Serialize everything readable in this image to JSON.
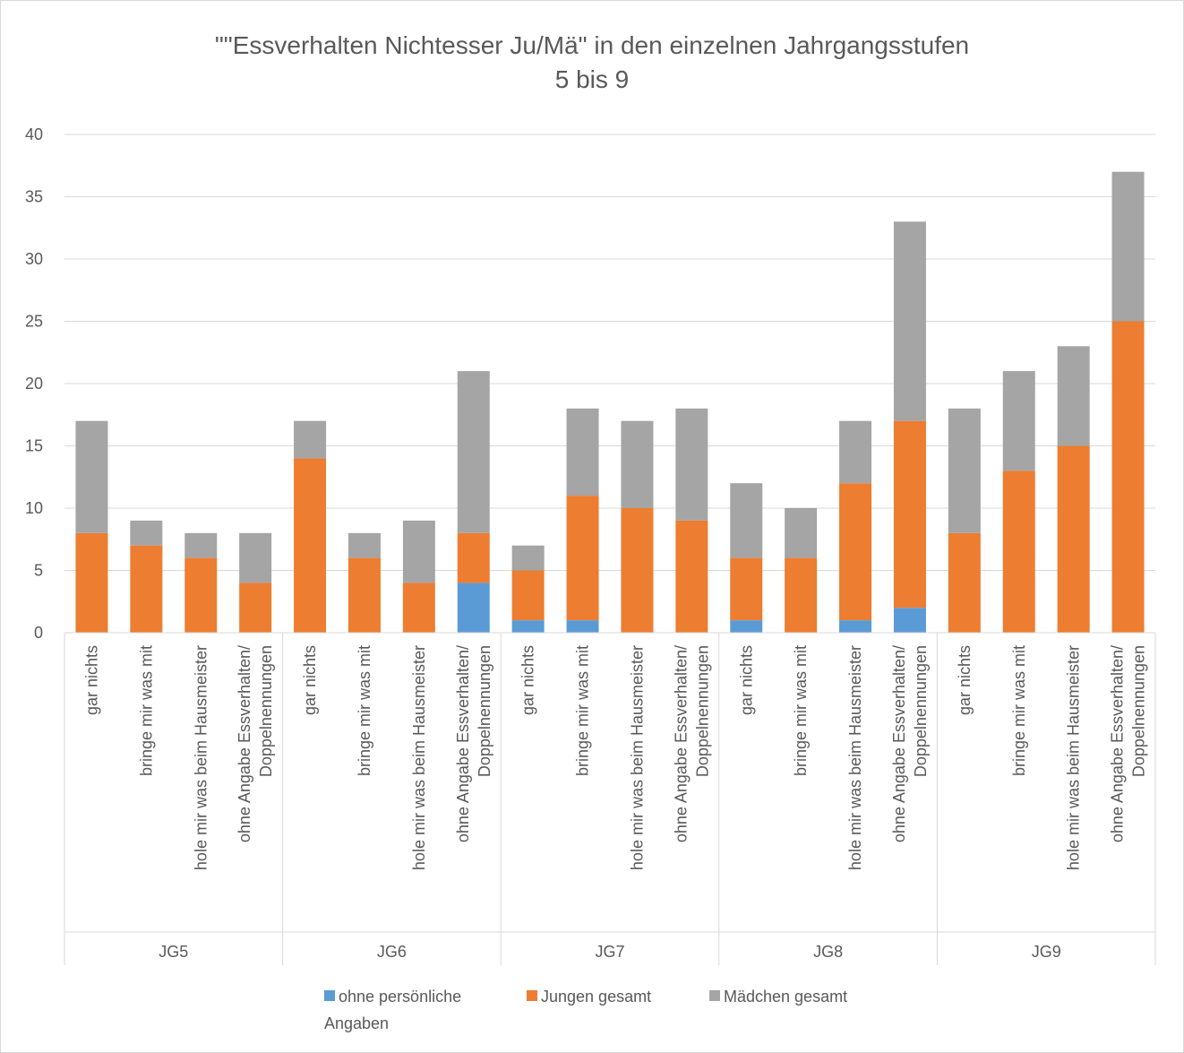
{
  "chart_data": {
    "type": "stacked_bar",
    "title": "\"\"Essverhalten Nichtesser Ju/Mä\" in den einzelnen Jahrgangsstufen\n5 bis 9",
    "groups": [
      "JG5",
      "JG6",
      "JG7",
      "JG8",
      "JG9"
    ],
    "categories": [
      "gar nichts",
      "bringe mir was mit",
      "hole mir was beim Hausmeister",
      "ohne Angabe Essverhalten/\nDoppelnennungen",
      "gar nichts",
      "bringe mir was mit",
      "hole mir was beim Hausmeister",
      "ohne Angabe Essverhalten/\nDoppelnennungen",
      "gar nichts",
      "bringe mir was mit",
      "hole mir was beim Hausmeister",
      "ohne Angabe Essverhalten/\nDoppelnennungen",
      "gar nichts",
      "bringe mir was mit",
      "hole mir was beim Hausmeister",
      "ohne Angabe Essverhalten/\nDoppelnennungen",
      "gar nichts",
      "bringe mir was mit",
      "hole mir was beim Hausmeister",
      "ohne Angabe Essverhalten/\nDoppelnennungen"
    ],
    "series": [
      {
        "name": "ohne persönliche\nAngaben",
        "color": "#5b9bd5",
        "values": [
          0,
          0,
          0,
          0,
          0,
          0,
          0,
          4,
          1,
          1,
          0,
          0,
          1,
          0,
          1,
          2,
          0,
          0,
          0,
          0
        ]
      },
      {
        "name": "Jungen gesamt",
        "color": "#ed7d31",
        "values": [
          8,
          7,
          6,
          4,
          14,
          6,
          4,
          4,
          4,
          10,
          10,
          9,
          5,
          6,
          11,
          15,
          8,
          13,
          15,
          25
        ]
      },
      {
        "name": "Mädchen gesamt",
        "color": "#a5a5a5",
        "values": [
          9,
          2,
          2,
          4,
          3,
          2,
          5,
          13,
          2,
          7,
          7,
          9,
          6,
          4,
          5,
          16,
          10,
          8,
          8,
          12
        ]
      }
    ],
    "ylim": [
      0,
      40
    ],
    "yticks": [
      0,
      5,
      10,
      15,
      20,
      25,
      30,
      35,
      40
    ],
    "grid": true,
    "legend": "bottom"
  }
}
